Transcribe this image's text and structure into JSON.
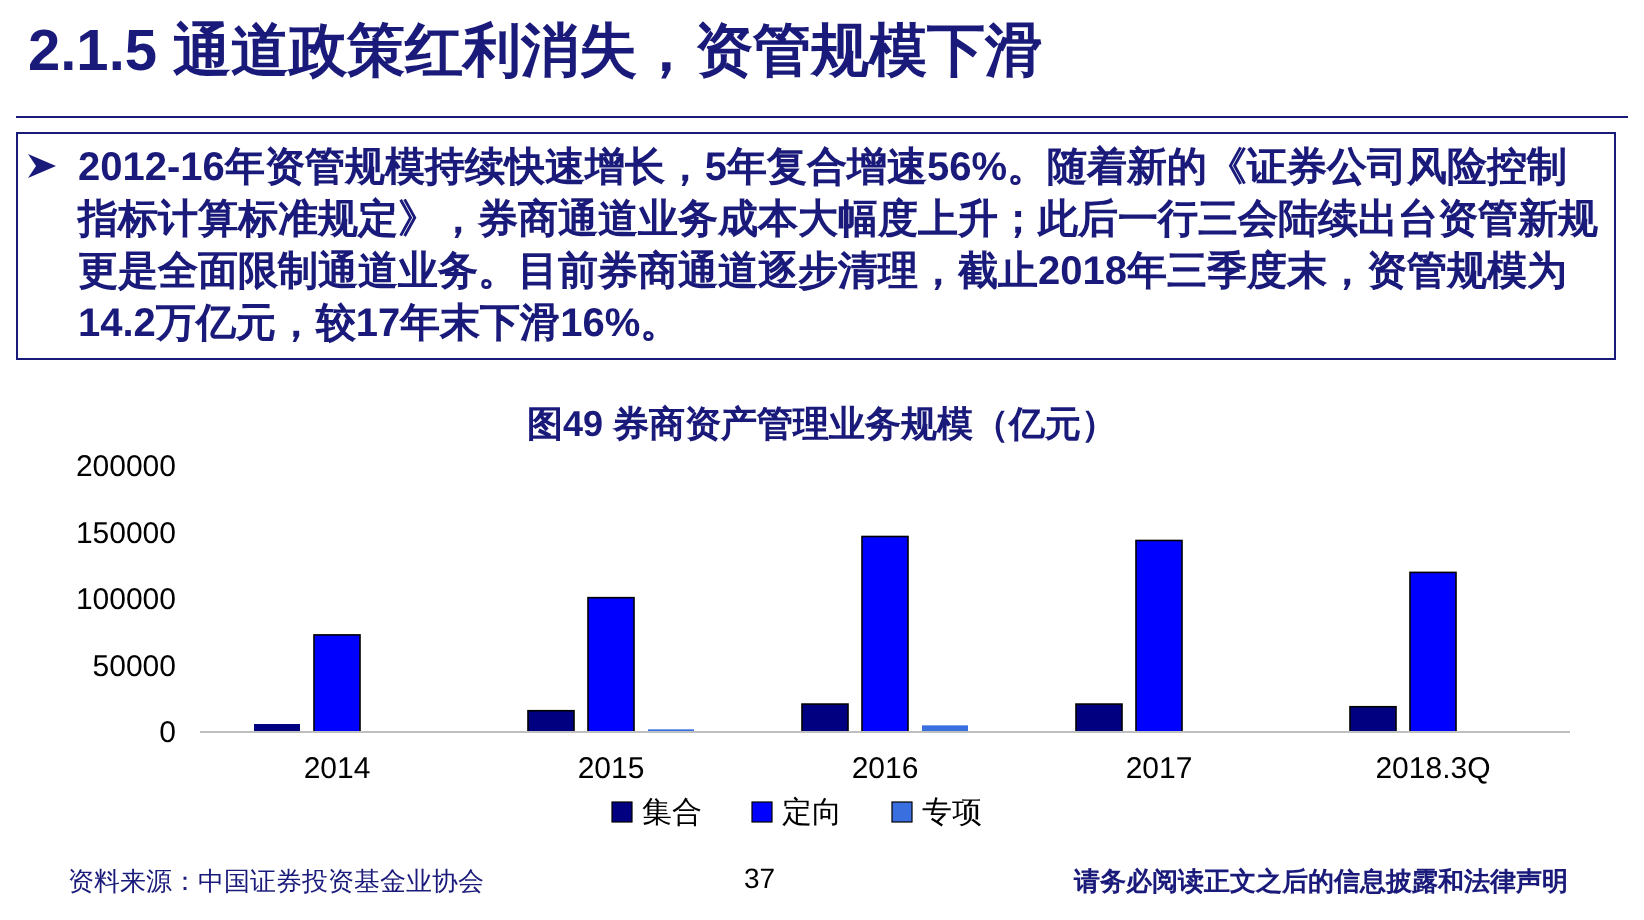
{
  "chart_data": {
    "type": "bar",
    "title": "2.1.5 通道政策红利消失，资管规模下滑",
    "subtitle": "2012-16年资管规模持续快速增长，5年复合增速56%。随着新的《证券公司风险控制指标计算标准规定》，券商通道业务成本大幅度上升；此后一行三会陆续出台资管新规更是全面限制通道业务。目前券商通道逐步清理，截止2018年三季度末，资管规模为14.2万亿元，较17年末下滑16%。",
    "annotations": [
      "图49   券商资产管理业务规模（亿元）",
      "资料来源：中国证券投资基金业协会",
      "37",
      "请务必阅读正文之后的信息披露和法律声明"
    ],
    "categories": [
      "2014",
      "2015",
      "2016",
      "2017",
      "2018.3Q"
    ],
    "series": [
      {
        "name": "集合",
        "color": "#000080",
        "values": [
          6000,
          16000,
          21000,
          21000,
          19000
        ]
      },
      {
        "name": "定向",
        "color": "#0000ff",
        "values": [
          73000,
          101000,
          147000,
          144000,
          120000
        ]
      },
      {
        "name": "专项",
        "color": "#3a6fe0",
        "values": [
          null,
          2000,
          5000,
          null,
          null
        ]
      }
    ],
    "ylim": [
      0,
      200000
    ],
    "yticks": [
      0,
      50000,
      100000,
      150000,
      200000
    ],
    "legend": "bottom"
  }
}
